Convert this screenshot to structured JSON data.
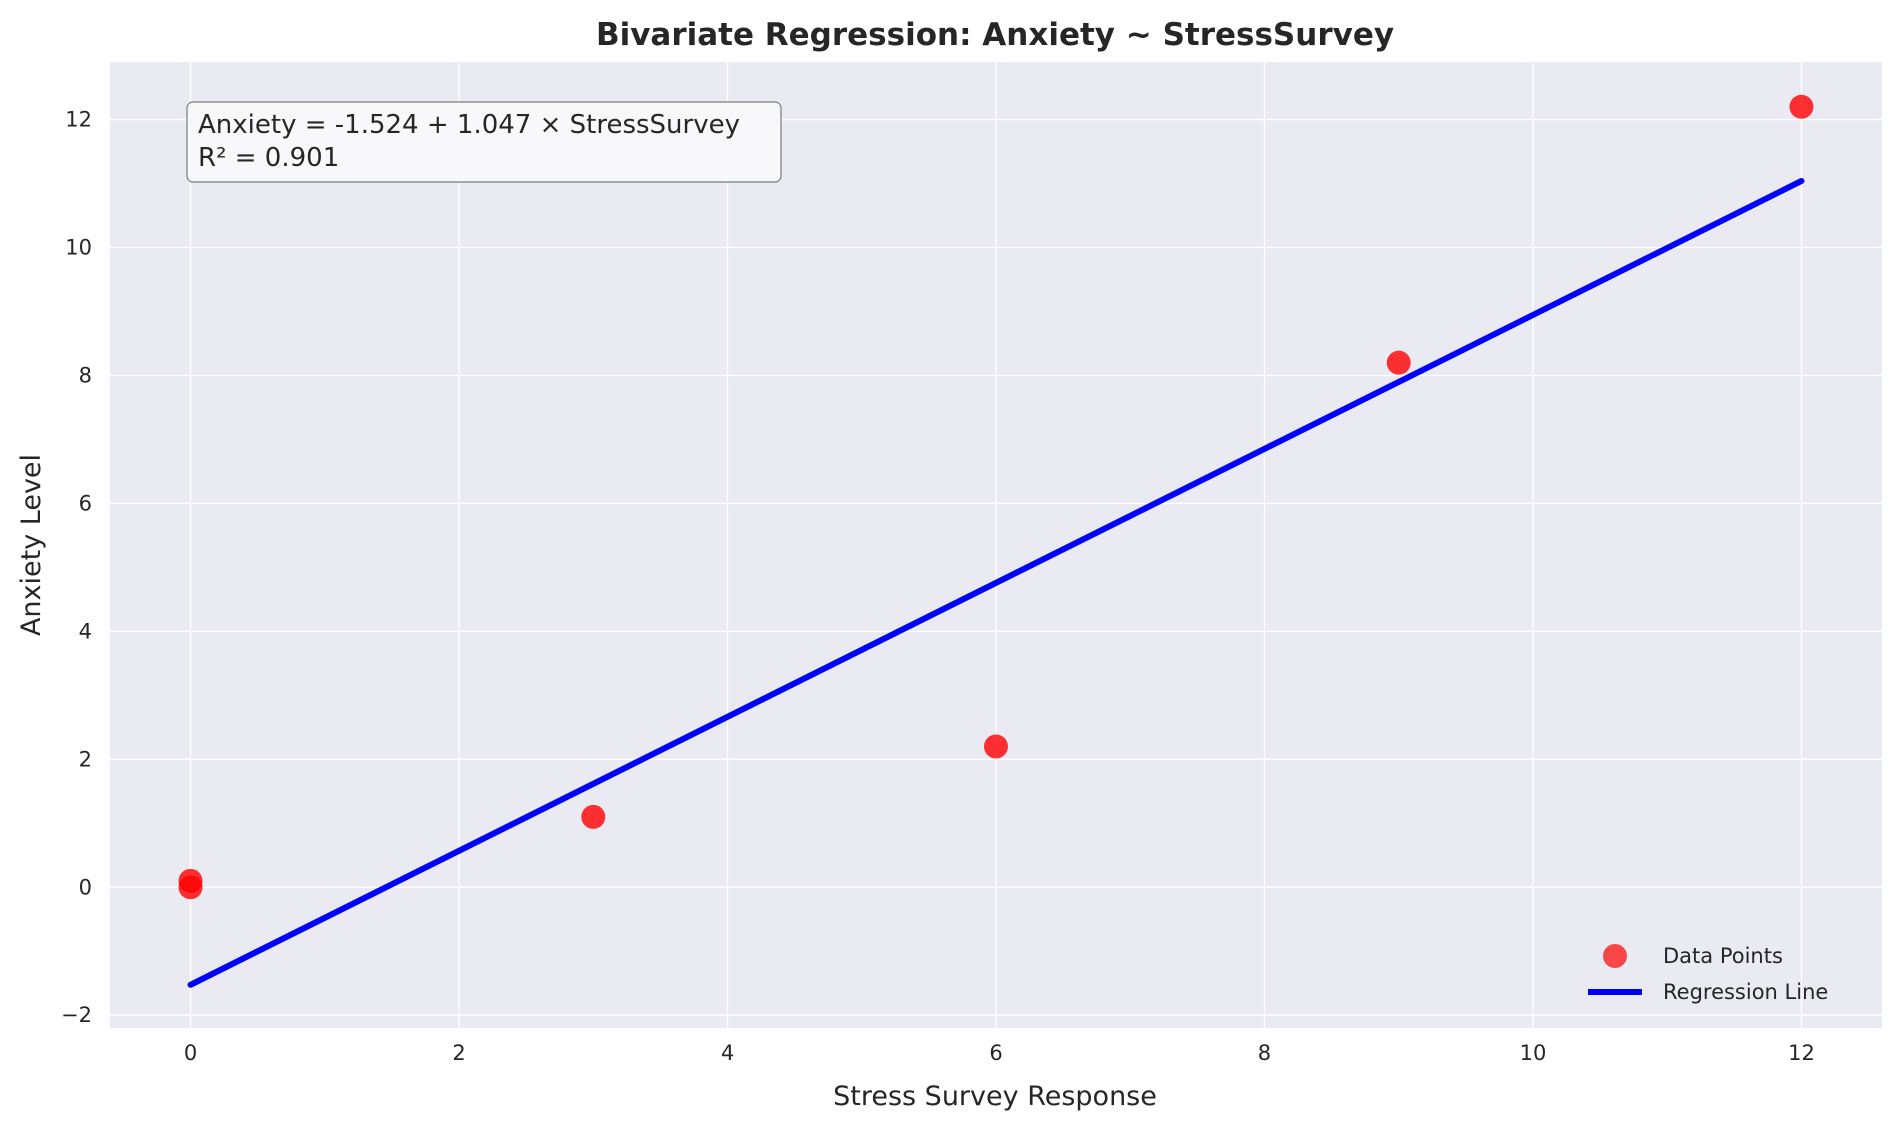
{
  "chart_data": {
    "type": "scatter",
    "title": "Bivariate Regression: Anxiety ~ StressSurvey",
    "xlabel": "Stress Survey Response",
    "ylabel": "Anxiety Level",
    "xlim": [
      -0.6,
      12.6
    ],
    "ylim": [
      -2.2,
      12.9
    ],
    "xticks": [
      0,
      2,
      4,
      6,
      8,
      10,
      12
    ],
    "yticks": [
      -2,
      0,
      2,
      4,
      6,
      8,
      10,
      12
    ],
    "grid": true,
    "legend_position": "bottom-right",
    "series": [
      {
        "name": "Data Points",
        "kind": "scatter",
        "color": "#ff0000",
        "x": [
          0,
          0,
          3,
          6,
          9,
          12
        ],
        "y": [
          0.1,
          0.0,
          1.1,
          2.2,
          8.2,
          12.2
        ]
      },
      {
        "name": "Regression Line",
        "kind": "line",
        "color": "#0000ff",
        "x": [
          0,
          12
        ],
        "y": [
          -1.524,
          11.04
        ]
      }
    ],
    "annotation": {
      "line1": "Anxiety = -1.524 + 1.047 × StressSurvey",
      "line2": "R² = 0.901",
      "position": "top-left"
    }
  }
}
